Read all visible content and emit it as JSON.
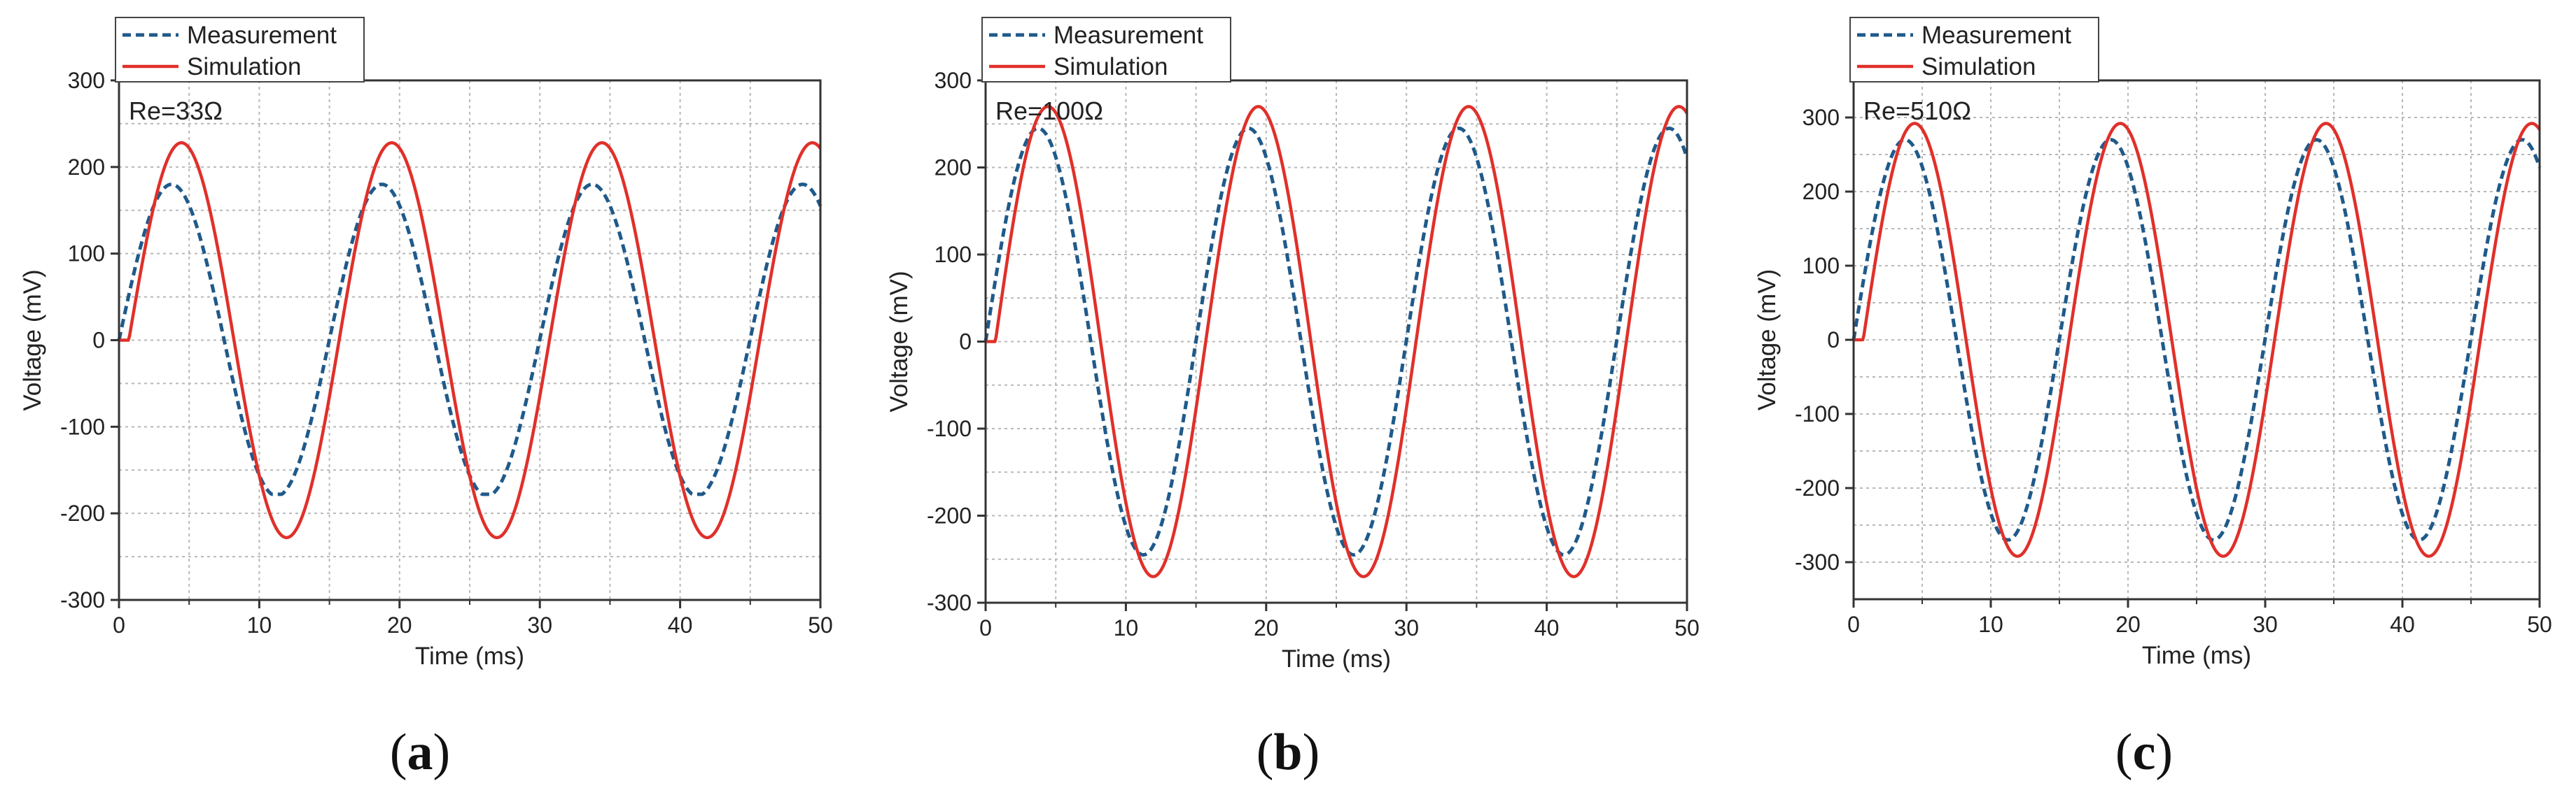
{
  "chart_data": [
    {
      "type": "line",
      "panel_label": "a",
      "annotation": "Re=33Ω",
      "xlabel": "Time (ms)",
      "ylabel": "Voltage (mV)",
      "xlim": [
        0,
        50
      ],
      "ylim": [
        -300,
        300
      ],
      "xticks": [
        0,
        10,
        20,
        30,
        40,
        50
      ],
      "yticks": [
        -300,
        -200,
        -100,
        0,
        100,
        200,
        300
      ],
      "legend": [
        "Measurement",
        "Simulation"
      ],
      "legend_position": "top-left-outside",
      "frequency_hz": 66.7,
      "series": [
        {
          "name": "Measurement",
          "style": "dashed",
          "color": "#1f5a8a",
          "amplitude": 180,
          "peak_clip": 192,
          "trough_clip": -178,
          "phase_ms": 0.0
        },
        {
          "name": "Simulation",
          "style": "solid",
          "color": "#e0302a",
          "amplitude": 228,
          "peak_clip": 228,
          "trough_clip": -228,
          "phase_ms": 0.7
        }
      ]
    },
    {
      "type": "line",
      "panel_label": "b",
      "annotation": "Re=100Ω",
      "xlabel": "Time (ms)",
      "ylabel": "Voltage (mV)",
      "xlim": [
        0,
        50
      ],
      "ylim": [
        -300,
        300
      ],
      "xticks": [
        0,
        10,
        20,
        30,
        40,
        50
      ],
      "yticks": [
        -300,
        -200,
        -100,
        0,
        100,
        200,
        300
      ],
      "legend": [
        "Measurement",
        "Simulation"
      ],
      "legend_position": "top-left-outside",
      "frequency_hz": 66.7,
      "series": [
        {
          "name": "Measurement",
          "style": "dashed",
          "color": "#1f5a8a",
          "amplitude": 245,
          "peak_clip": 245,
          "trough_clip": -245,
          "phase_ms": 0.0
        },
        {
          "name": "Simulation",
          "style": "solid",
          "color": "#e0302a",
          "amplitude": 270,
          "peak_clip": 270,
          "trough_clip": -270,
          "phase_ms": 0.7
        }
      ]
    },
    {
      "type": "line",
      "panel_label": "c",
      "annotation": "Re=510Ω",
      "xlabel": "Time (ms)",
      "ylabel": "Voltage (mV)",
      "xlim": [
        0,
        50
      ],
      "ylim": [
        -350,
        350
      ],
      "xticks": [
        0,
        10,
        20,
        30,
        40,
        50
      ],
      "yticks": [
        -300,
        -200,
        -100,
        0,
        100,
        200,
        300
      ],
      "legend": [
        "Measurement",
        "Simulation"
      ],
      "legend_position": "top-left-outside",
      "frequency_hz": 66.7,
      "series": [
        {
          "name": "Measurement",
          "style": "dashed",
          "color": "#1f5a8a",
          "amplitude": 270,
          "peak_clip": 270,
          "trough_clip": -270,
          "phase_ms": 0.0
        },
        {
          "name": "Simulation",
          "style": "solid",
          "color": "#e0302a",
          "amplitude": 292,
          "peak_clip": 292,
          "trough_clip": -292,
          "phase_ms": 0.7
        }
      ]
    }
  ]
}
